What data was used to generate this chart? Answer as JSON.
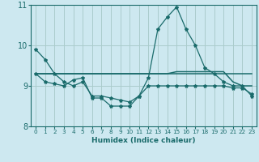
{
  "xlabel": "Humidex (Indice chaleur)",
  "background_color": "#cde8f0",
  "grid_color": "#aacccc",
  "line_color": "#1a6b6b",
  "xlim": [
    -0.5,
    23.5
  ],
  "ylim": [
    8,
    11
  ],
  "yticks": [
    8,
    9,
    10,
    11
  ],
  "xticks": [
    0,
    1,
    2,
    3,
    4,
    5,
    6,
    7,
    8,
    9,
    10,
    11,
    12,
    13,
    14,
    15,
    16,
    17,
    18,
    19,
    20,
    21,
    22,
    23
  ],
  "hours": [
    0,
    1,
    2,
    3,
    4,
    5,
    6,
    7,
    8,
    9,
    10,
    11,
    12,
    13,
    14,
    15,
    16,
    17,
    18,
    19,
    20,
    21,
    22,
    23
  ],
  "line1": [
    9.9,
    9.65,
    9.3,
    9.1,
    9.0,
    9.1,
    8.75,
    8.75,
    8.7,
    8.65,
    8.6,
    8.75,
    9.2,
    10.4,
    10.7,
    10.95,
    10.4,
    10.0,
    9.45,
    9.3,
    9.1,
    9.0,
    9.0,
    8.75
  ],
  "line2": [
    9.3,
    9.3,
    9.3,
    9.3,
    9.3,
    9.3,
    9.3,
    9.3,
    9.3,
    9.3,
    9.3,
    9.3,
    9.3,
    9.3,
    9.3,
    9.3,
    9.3,
    9.3,
    9.3,
    9.3,
    9.3,
    9.3,
    9.3,
    9.3
  ],
  "line3": [
    9.3,
    9.1,
    9.05,
    9.0,
    9.15,
    9.2,
    8.7,
    8.7,
    8.5,
    8.5,
    8.5,
    8.75,
    9.0,
    9.0,
    9.0,
    9.0,
    9.0,
    9.0,
    9.0,
    9.0,
    9.0,
    8.95,
    8.95,
    8.8
  ],
  "line4": [
    9.3,
    9.3,
    9.3,
    9.3,
    9.3,
    9.3,
    9.3,
    9.3,
    9.3,
    9.3,
    9.3,
    9.3,
    9.3,
    9.3,
    9.3,
    9.35,
    9.35,
    9.35,
    9.35,
    9.35,
    9.35,
    9.1,
    9.0,
    9.0
  ]
}
